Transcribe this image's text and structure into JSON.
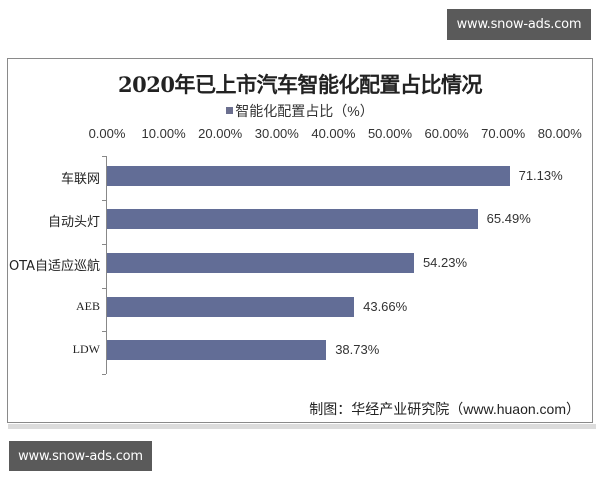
{
  "watermarks": {
    "top": "www.snow-ads.com",
    "bottom": "www.snow-ads.com"
  },
  "chart_data": {
    "type": "bar",
    "orientation": "horizontal",
    "title": "2020年已上市汽车智能化配置占比情况",
    "legend": [
      "智能化配置占比（%）"
    ],
    "legend_position": "top",
    "categories": [
      "车联网",
      "自动头灯",
      "OTA自适应巡航",
      "AEB",
      "LDW"
    ],
    "values": [
      71.13,
      65.49,
      54.23,
      43.66,
      38.73
    ],
    "value_labels": [
      "71.13%",
      "65.49%",
      "54.23%",
      "43.66%",
      "38.73%"
    ],
    "series": [
      {
        "name": "智能化配置占比（%）",
        "values": [
          71.13,
          65.49,
          54.23,
          43.66,
          38.73
        ],
        "color": "#626d96"
      }
    ],
    "xlabel": "",
    "ylabel": "",
    "xlim": [
      0,
      80
    ],
    "x_ticks": [
      "0.00%",
      "10.00%",
      "20.00%",
      "30.00%",
      "40.00%",
      "50.00%",
      "60.00%",
      "70.00%",
      "80.00%"
    ],
    "x_axis_position": "top",
    "grid": false,
    "source": "制图：华经产业研究院（www.huaon.com）"
  }
}
